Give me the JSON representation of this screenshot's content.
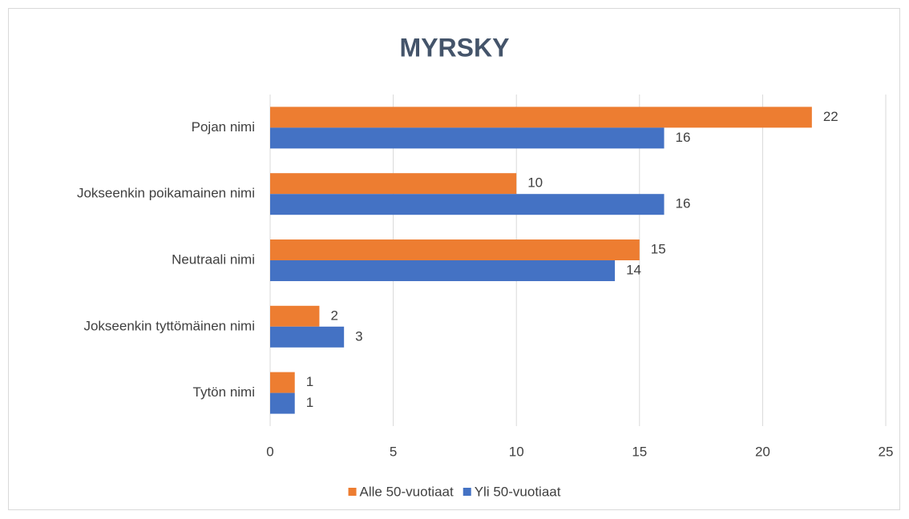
{
  "chart_data": {
    "type": "hbar",
    "title": "MYRSKY",
    "categories": [
      "Pojan nimi",
      "Jokseenkin poikamainen nimi",
      "Neutraali nimi",
      "Jokseenkin tyttömäinen nimi",
      "Tytön nimi"
    ],
    "series": [
      {
        "name": "Alle 50-vuotiaat",
        "color": "#ed7d31",
        "values": [
          22,
          10,
          15,
          2,
          1
        ]
      },
      {
        "name": "Yli 50-vuotiaat",
        "color": "#4472c4",
        "values": [
          16,
          16,
          14,
          3,
          1
        ]
      }
    ],
    "xlim": [
      0,
      25
    ],
    "xticks": [
      0,
      5,
      10,
      15,
      20,
      25
    ],
    "grid": true,
    "legend": "bottom"
  }
}
